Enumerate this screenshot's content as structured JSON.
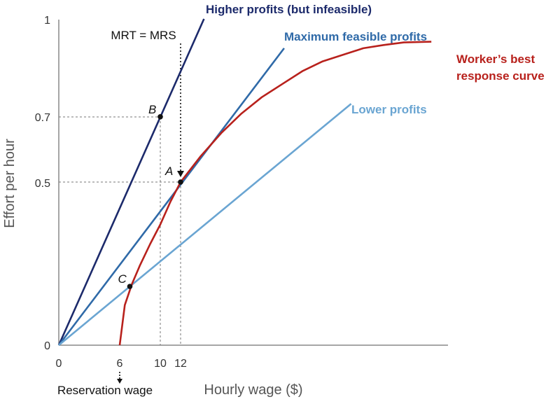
{
  "chart_data": {
    "type": "line",
    "title": "",
    "xlabel": "Hourly wage ($)",
    "ylabel": "Effort per hour",
    "xlim": [
      0,
      38
    ],
    "ylim": [
      0,
      1
    ],
    "x_ticks": [
      "0",
      "6",
      "10",
      "12"
    ],
    "y_ticks": [
      "0",
      "0.5",
      "0.7",
      "1"
    ],
    "series": [
      {
        "name": "Higher profits (but infeasible)",
        "x": [
          0,
          14.3
        ],
        "y": [
          0,
          1.0
        ],
        "color": "#1c2a6b"
      },
      {
        "name": "Maximum feasible profits",
        "x": [
          0,
          22.2
        ],
        "y": [
          0,
          0.91
        ],
        "color": "#2f6aa8"
      },
      {
        "name": "Lower profits",
        "x": [
          0,
          28.8
        ],
        "y": [
          0,
          0.74
        ],
        "color": "#6aa5d2"
      },
      {
        "name": "Worker’s best response curve",
        "x": [
          6,
          6.5,
          7.2,
          8,
          9,
          10,
          11,
          12,
          14,
          16,
          18,
          20,
          22,
          24,
          26,
          28,
          30,
          32,
          34,
          36.7
        ],
        "y": [
          0,
          0.123,
          0.187,
          0.245,
          0.31,
          0.37,
          0.44,
          0.5,
          0.58,
          0.65,
          0.71,
          0.76,
          0.8,
          0.84,
          0.87,
          0.89,
          0.91,
          0.92,
          0.928,
          0.93
        ],
        "color": "#b8211c"
      }
    ],
    "points": [
      {
        "label": "A",
        "x": 12,
        "y": 0.5
      },
      {
        "label": "B",
        "x": 10,
        "y": 0.7
      },
      {
        "label": "C",
        "x": 7,
        "y": 0.18
      }
    ],
    "annotations": {
      "mrt_mrs": "MRT = MRS",
      "reservation_wage": "Reservation wage"
    },
    "colors": {
      "higher": "#1c2a6b",
      "maximum": "#2f6aa8",
      "lower": "#6aa5d2",
      "best_response": "#b8211c"
    }
  }
}
